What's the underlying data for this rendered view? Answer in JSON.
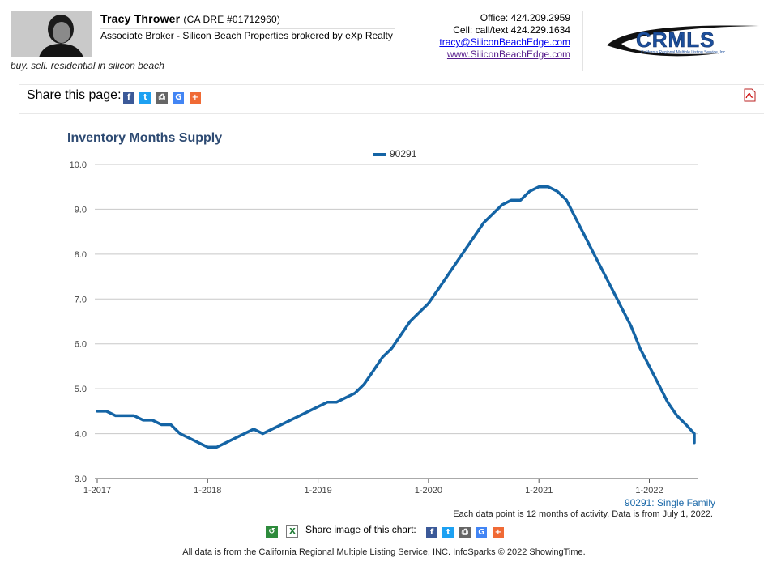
{
  "agent": {
    "name": "Tracy Thrower",
    "license": "(CA DRE #01712960)",
    "title": "Associate Broker - Silicon Beach Properties brokered by eXp Realty",
    "tagline": "buy. sell. residential in silicon beach",
    "office": "Office: 424.209.2959",
    "cell": "Cell: call/text 424.229.1634",
    "email": "tracy@SiliconBeachEdge.com",
    "website": "www.SiliconBeachEdge.com"
  },
  "logo": {
    "text": "CRMLS",
    "subtext": "California Regional Multiple Listing Service, Inc."
  },
  "share_page": {
    "label": "Share this page:",
    "icons": [
      "facebook-icon",
      "twitter-icon",
      "print-icon",
      "google-icon",
      "plus-icon"
    ]
  },
  "image_share": {
    "label": "Share image of this chart:"
  },
  "chart_data": {
    "type": "line",
    "title": "Inventory Months Supply",
    "series": [
      {
        "name": "90291",
        "color": "#1464a5",
        "x": [
          "2017-01",
          "2017-02",
          "2017-03",
          "2017-04",
          "2017-05",
          "2017-06",
          "2017-07",
          "2017-08",
          "2017-09",
          "2017-10",
          "2017-11",
          "2017-12",
          "2018-01",
          "2018-02",
          "2018-03",
          "2018-04",
          "2018-05",
          "2018-06",
          "2018-07",
          "2018-08",
          "2018-09",
          "2018-10",
          "2018-11",
          "2018-12",
          "2019-01",
          "2019-02",
          "2019-03",
          "2019-04",
          "2019-05",
          "2019-06",
          "2019-07",
          "2019-08",
          "2019-09",
          "2019-10",
          "2019-11",
          "2019-12",
          "2020-01",
          "2020-02",
          "2020-03",
          "2020-04",
          "2020-05",
          "2020-06",
          "2020-07",
          "2020-08",
          "2020-09",
          "2020-10",
          "2020-11",
          "2020-12",
          "2021-01",
          "2021-02",
          "2021-03",
          "2021-04",
          "2021-05",
          "2021-06",
          "2021-07",
          "2021-08",
          "2021-09",
          "2021-10",
          "2021-11",
          "2021-12",
          "2022-01",
          "2022-02",
          "2022-03",
          "2022-04",
          "2022-05",
          "2022-06",
          "2022-07"
        ],
        "values": [
          4.5,
          4.5,
          4.4,
          4.4,
          4.4,
          4.3,
          4.3,
          4.2,
          4.2,
          4.0,
          3.9,
          3.8,
          3.7,
          3.7,
          3.8,
          3.9,
          4.0,
          4.1,
          4.0,
          4.1,
          4.2,
          4.3,
          4.4,
          4.5,
          4.6,
          4.7,
          4.7,
          4.8,
          4.9,
          5.1,
          5.4,
          5.7,
          5.9,
          6.2,
          6.5,
          6.7,
          6.9,
          7.2,
          7.5,
          7.8,
          8.1,
          8.4,
          8.7,
          8.9,
          9.1,
          9.2,
          9.2,
          9.4,
          9.5,
          9.5,
          9.4,
          9.2,
          8.8,
          8.4,
          8.0,
          7.6,
          7.2,
          6.8,
          6.4,
          5.9,
          5.5,
          5.1,
          4.7,
          4.4,
          4.2,
          4.0,
          3.8
        ]
      }
    ],
    "xticks": [
      "1-2017",
      "1-2018",
      "1-2019",
      "1-2020",
      "1-2021",
      "1-2022"
    ],
    "yticks": [
      "3.0",
      "4.0",
      "5.0",
      "6.0",
      "7.0",
      "8.0",
      "9.0",
      "10.0"
    ],
    "ylim": [
      3.0,
      10.0
    ],
    "grid": true,
    "legend": "top-center",
    "series_caption": "90291: Single Family",
    "note": "Each data point is 12 months of activity. Data is from July 1, 2022."
  },
  "footer": "All data is from the California Regional Multiple Listing Service, INC. InfoSparks © 2022 ShowingTime."
}
